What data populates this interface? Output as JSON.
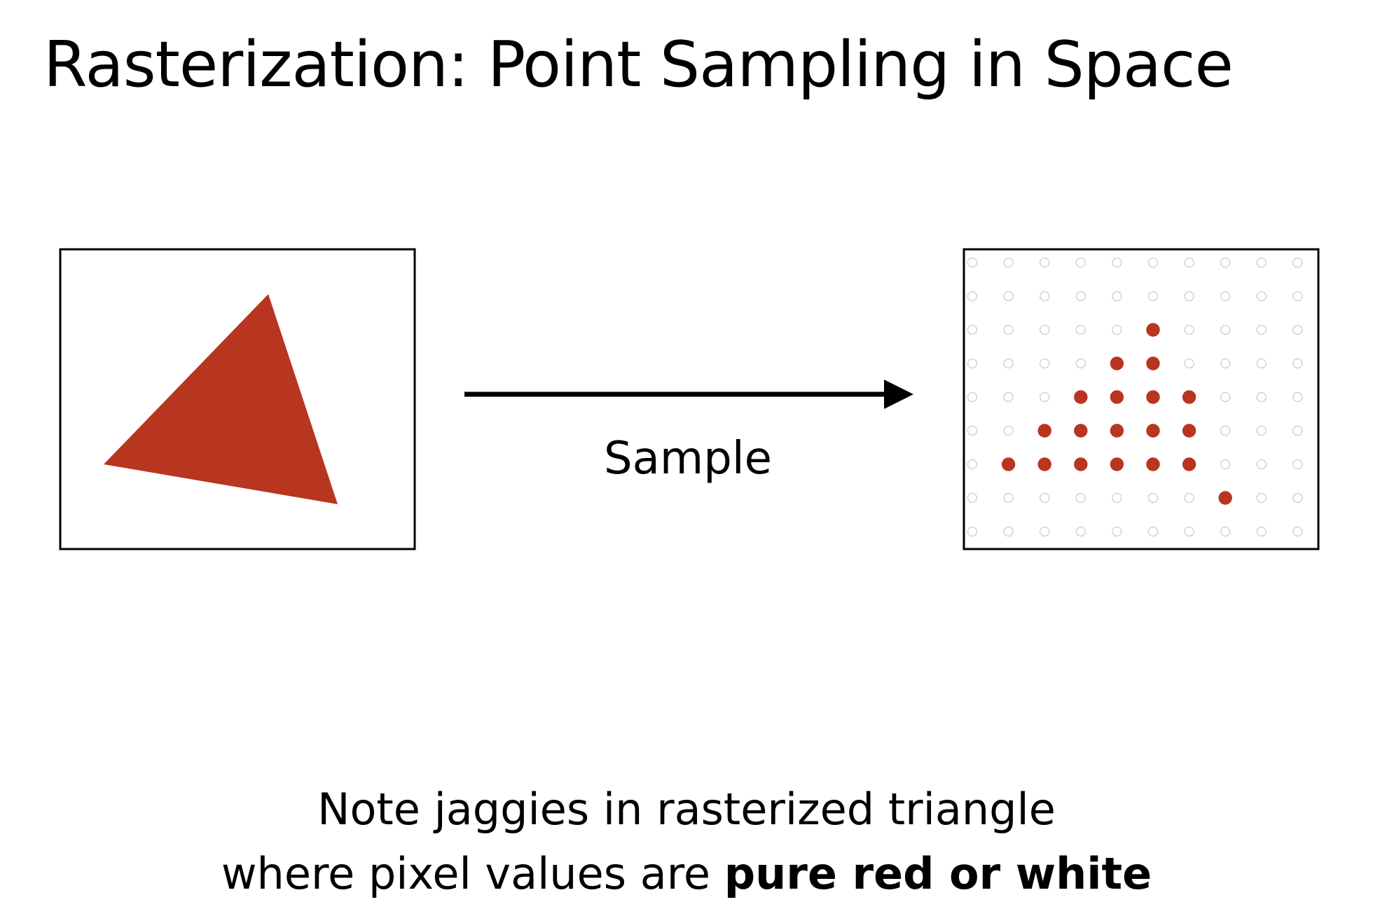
{
  "title": "Rasterization: Point Sampling in Space",
  "arrow_label": "Sample",
  "caption": {
    "line1": "Note jaggies in rasterized triangle",
    "line2_prefix": "where pixel values are ",
    "line2_bold": "pure red or white"
  },
  "colors": {
    "triangle": "#b8351f",
    "sample_empty": "#cccccc",
    "frame": "#000000"
  },
  "sample_grid": {
    "columns": 10,
    "rows": 9,
    "filled": [
      [
        2,
        5
      ],
      [
        3,
        4
      ],
      [
        3,
        5
      ],
      [
        4,
        3
      ],
      [
        4,
        4
      ],
      [
        4,
        5
      ],
      [
        4,
        6
      ],
      [
        5,
        2
      ],
      [
        5,
        3
      ],
      [
        5,
        4
      ],
      [
        5,
        5
      ],
      [
        5,
        6
      ],
      [
        6,
        1
      ],
      [
        6,
        2
      ],
      [
        6,
        3
      ],
      [
        6,
        4
      ],
      [
        6,
        5
      ],
      [
        6,
        6
      ],
      [
        7,
        7
      ]
    ]
  }
}
